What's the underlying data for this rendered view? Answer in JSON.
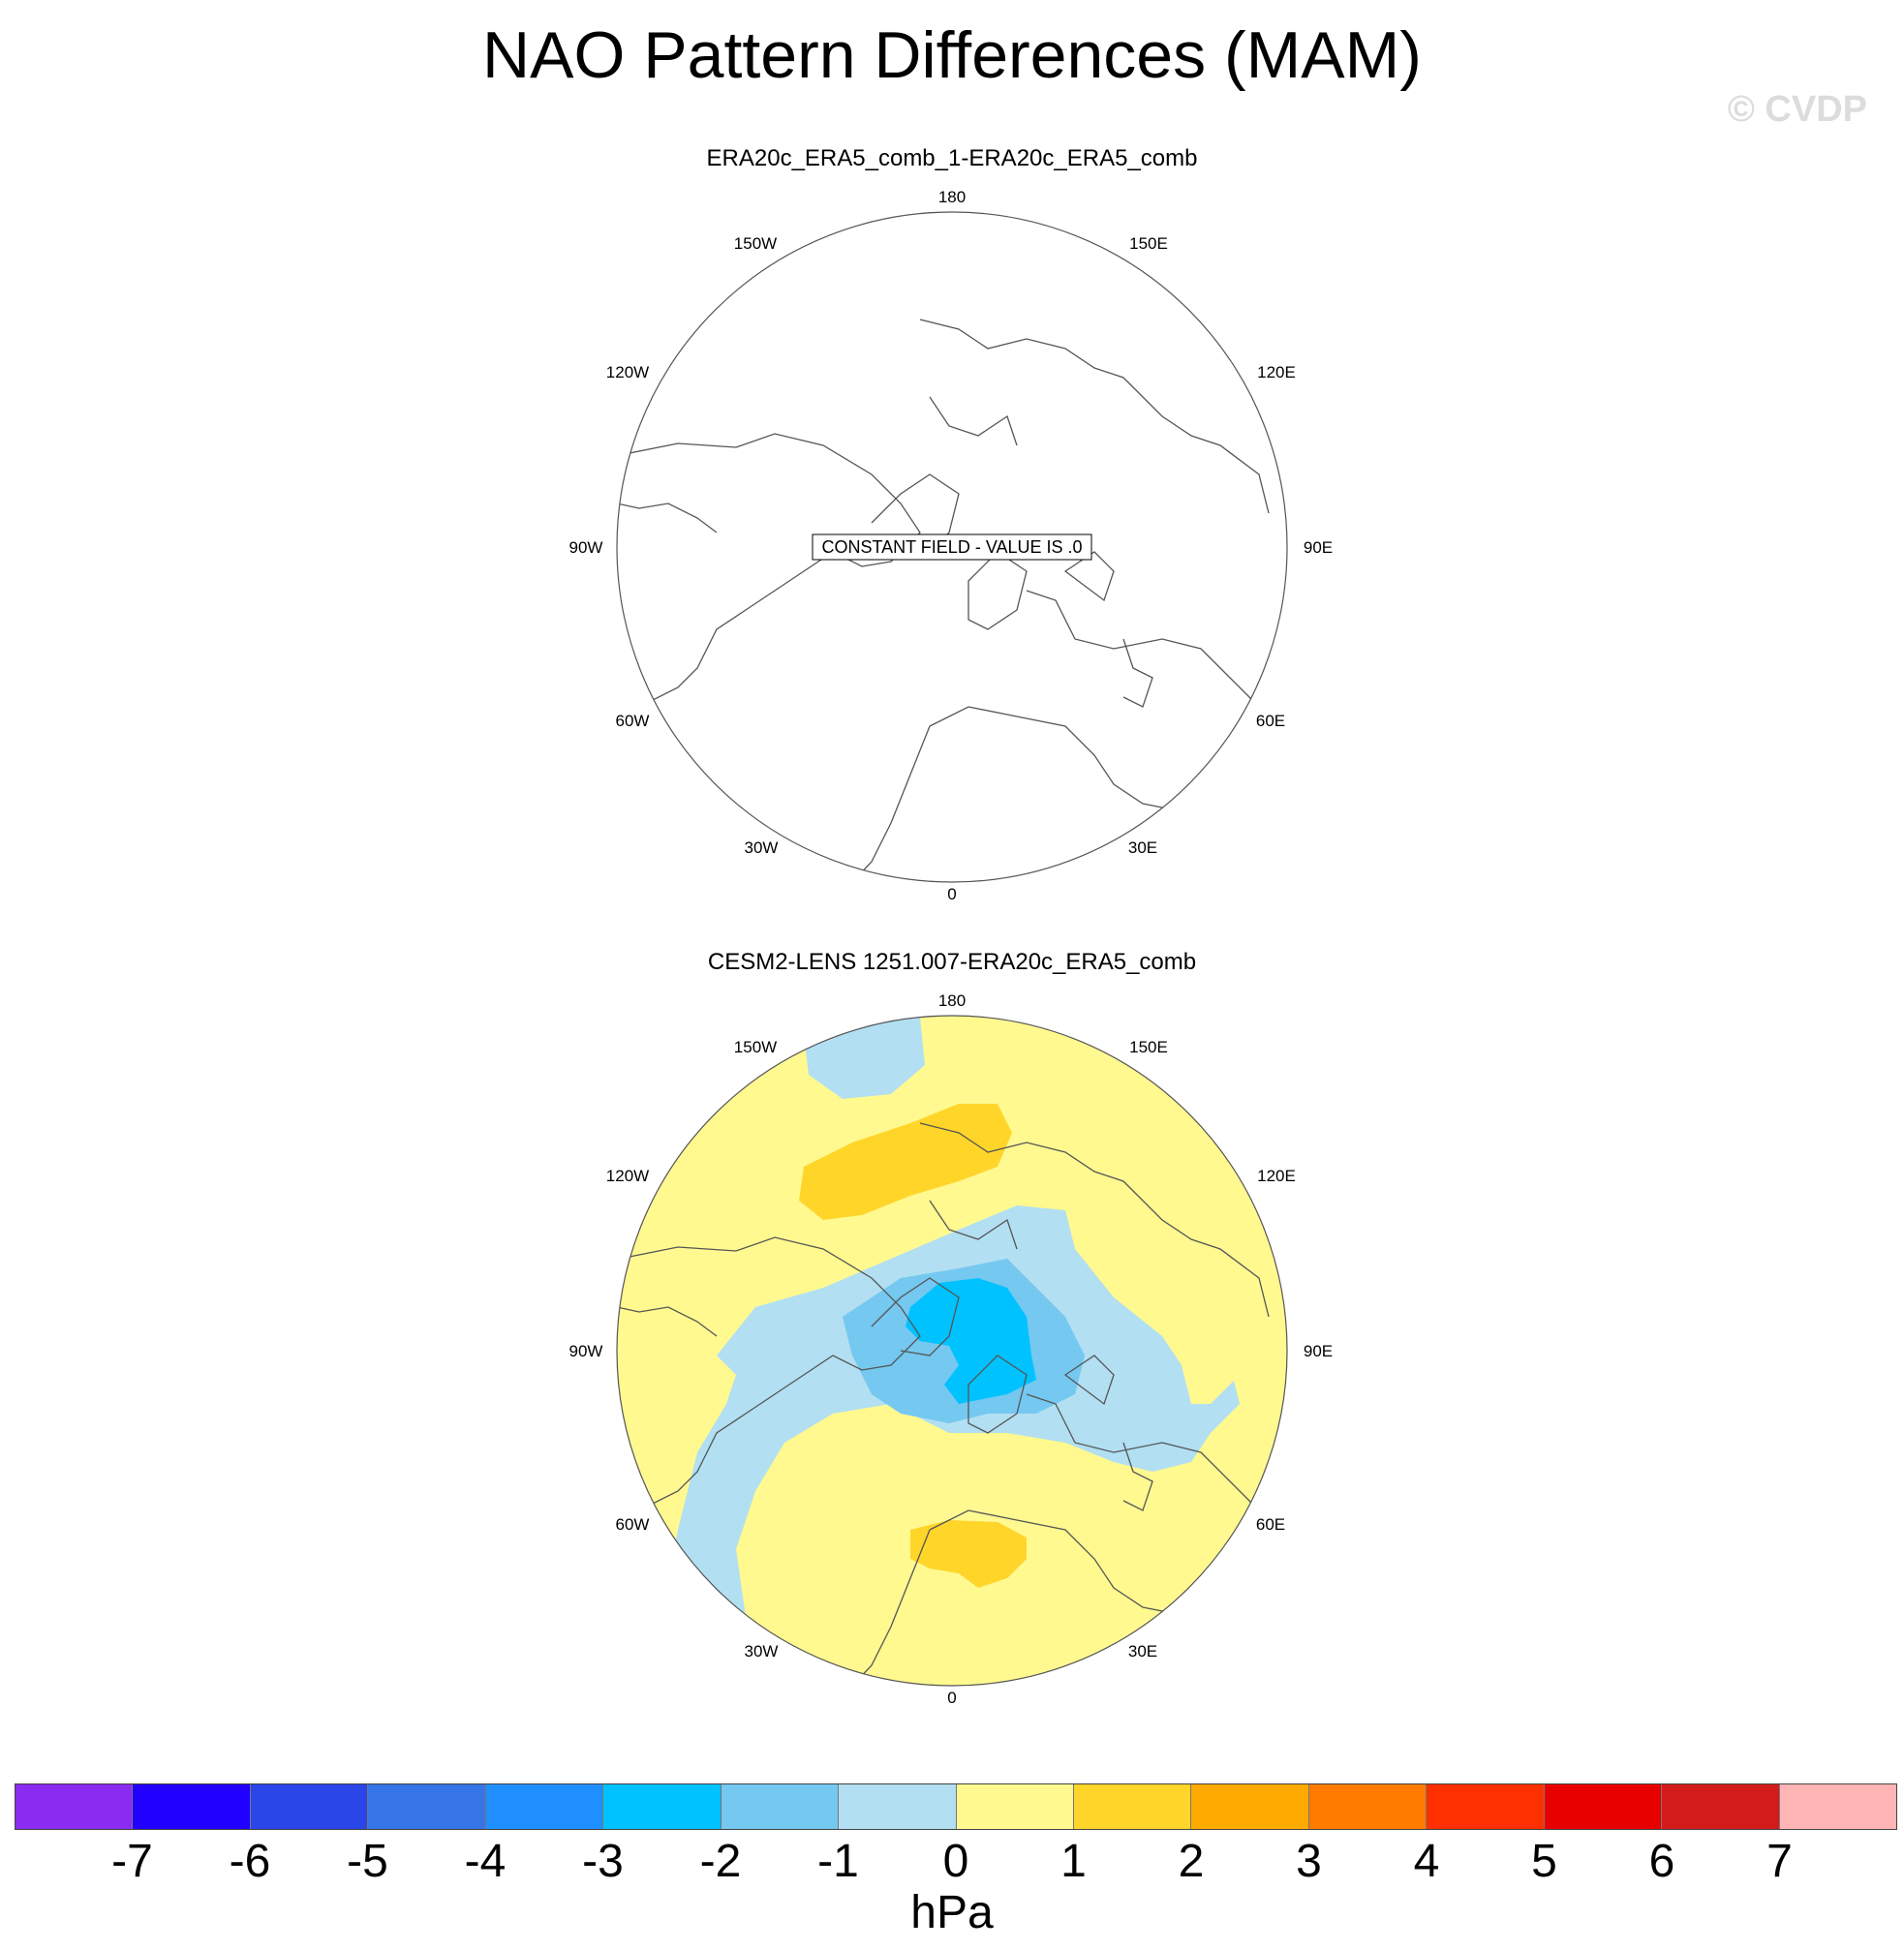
{
  "title": "NAO Pattern Differences (MAM)",
  "watermark": "© CVDP",
  "longitude_labels": {
    "top": "180",
    "top_left": "150W",
    "top_right": "150E",
    "upper_left": "120W",
    "upper_right": "120E",
    "left": "90W",
    "right": "90E",
    "lower_left": "60W",
    "lower_right": "60E",
    "bottom_left": "30W",
    "bottom_right": "30E",
    "bottom": "0"
  },
  "panels": [
    {
      "title": "ERA20c_ERA5_comb_1-ERA20c_ERA5_comb",
      "annotation": "CONSTANT FIELD - VALUE IS .0"
    },
    {
      "title": "CESM2-LENS 1251.007-ERA20c_ERA5_comb",
      "annotation": ""
    }
  ],
  "colorbar": {
    "units": "hPa",
    "ticks": [
      "-7",
      "-6",
      "-5",
      "-4",
      "-3",
      "-2",
      "-1",
      "0",
      "1",
      "2",
      "3",
      "4",
      "5",
      "6",
      "7"
    ],
    "colors": [
      "#8a2bf2",
      "#2200ff",
      "#2a45e8",
      "#3575e8",
      "#1f8fff",
      "#00c2ff",
      "#75c8f0",
      "#b2dff2",
      "#fff990",
      "#ffd52a",
      "#ffaa00",
      "#ff7c00",
      "#ff3000",
      "#e80000",
      "#d21c1c",
      "#ffb5b5"
    ]
  },
  "field_colors": {
    "zero_to_one": "#fff990",
    "one_to_two": "#ffd52a",
    "minus_one_to_zero": "#b2dff2",
    "minus_two_to_minus_one": "#75c8f0",
    "minus_three_to_minus_two": "#00c2ff"
  }
}
